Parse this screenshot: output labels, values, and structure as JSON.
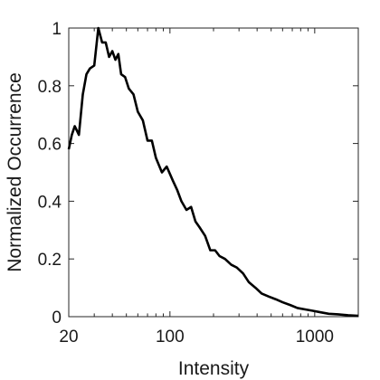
{
  "chart_data": {
    "type": "line",
    "title": "",
    "xlabel": "Intensity",
    "ylabel": "Normalized Occurrence",
    "xscale": "log",
    "xlim": [
      20,
      2000
    ],
    "ylim": [
      0,
      1
    ],
    "grid": false,
    "legend": "none",
    "x_ticks": [
      {
        "value": 20,
        "label": "20"
      },
      {
        "value": 100,
        "label": "100"
      },
      {
        "value": 1000,
        "label": "1000"
      }
    ],
    "y_ticks": [
      {
        "value": 0,
        "label": "0"
      },
      {
        "value": 0.2,
        "label": "0.2"
      },
      {
        "value": 0.4,
        "label": "0.4"
      },
      {
        "value": 0.6,
        "label": "0.6"
      },
      {
        "value": 0.8,
        "label": "0.8"
      },
      {
        "value": 1,
        "label": "1"
      }
    ],
    "series": [
      {
        "color": "#000000",
        "points": [
          [
            20,
            0.58
          ],
          [
            21,
            0.63
          ],
          [
            22,
            0.66
          ],
          [
            23.5,
            0.63
          ],
          [
            25,
            0.77
          ],
          [
            26.5,
            0.84
          ],
          [
            28,
            0.86
          ],
          [
            30,
            0.87
          ],
          [
            32,
            1.0
          ],
          [
            34,
            0.95
          ],
          [
            36,
            0.95
          ],
          [
            38,
            0.9
          ],
          [
            40,
            0.92
          ],
          [
            42,
            0.89
          ],
          [
            44,
            0.91
          ],
          [
            46,
            0.84
          ],
          [
            49,
            0.83
          ],
          [
            52,
            0.79
          ],
          [
            56,
            0.77
          ],
          [
            60,
            0.71
          ],
          [
            65,
            0.68
          ],
          [
            70,
            0.61
          ],
          [
            75,
            0.61
          ],
          [
            80,
            0.55
          ],
          [
            88,
            0.5
          ],
          [
            95,
            0.52
          ],
          [
            105,
            0.47
          ],
          [
            112,
            0.44
          ],
          [
            120,
            0.4
          ],
          [
            130,
            0.37
          ],
          [
            140,
            0.38
          ],
          [
            150,
            0.33
          ],
          [
            160,
            0.31
          ],
          [
            175,
            0.28
          ],
          [
            190,
            0.23
          ],
          [
            205,
            0.23
          ],
          [
            220,
            0.21
          ],
          [
            240,
            0.2
          ],
          [
            265,
            0.18
          ],
          [
            290,
            0.17
          ],
          [
            320,
            0.15
          ],
          [
            350,
            0.12
          ],
          [
            390,
            0.1
          ],
          [
            430,
            0.08
          ],
          [
            480,
            0.07
          ],
          [
            540,
            0.06
          ],
          [
            600,
            0.05
          ],
          [
            680,
            0.04
          ],
          [
            760,
            0.03
          ],
          [
            860,
            0.025
          ],
          [
            980,
            0.02
          ],
          [
            1100,
            0.015
          ],
          [
            1250,
            0.01
          ],
          [
            1450,
            0.008
          ],
          [
            1700,
            0.005
          ],
          [
            2000,
            0.003
          ]
        ]
      }
    ]
  }
}
